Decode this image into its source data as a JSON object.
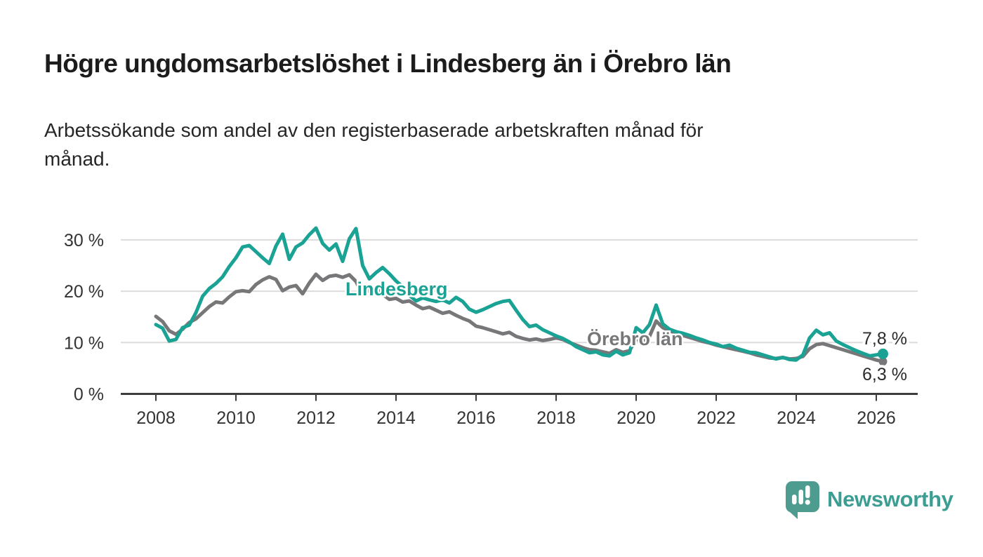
{
  "header": {
    "title": "Högre ungdomsarbetslöshet i Lindesberg än i Örebro län",
    "subtitle_lines": [
      "Arbetssökande som andel av den registerbaserade arbetskraften månad för",
      "månad."
    ]
  },
  "footer": {
    "brand": "Newsworthy",
    "logo_icon": "newsworthy-speech-bubble-bar-chart-icon",
    "brand_color": "#3c9e93",
    "logo_bubble_color": "#4e9c90"
  },
  "chart_data": {
    "type": "line",
    "title": "Högre ungdomsarbetslöshet i Lindesberg än i Örebro län",
    "subtitle": "Arbetssökande som andel av den registerbaserade arbetskraften månad för månad.",
    "unit": "percent",
    "x_unit": "year (monthly data)",
    "x_start": 2008.0,
    "x_step_years": 0.1666667,
    "xlim": [
      2007.5,
      2027.0
    ],
    "ylim": [
      0,
      33
    ],
    "grid": "horizontal",
    "x_ticks": [
      "2008",
      "2010",
      "2012",
      "2014",
      "2016",
      "2018",
      "2020",
      "2022",
      "2024",
      "2026"
    ],
    "x_tick_years": [
      2008,
      2010,
      2012,
      2014,
      2016,
      2018,
      2020,
      2022,
      2024,
      2026
    ],
    "y_ticks": [
      {
        "value": 0,
        "label": "0 %"
      },
      {
        "value": 10,
        "label": "10 %"
      },
      {
        "value": 20,
        "label": "20 %"
      },
      {
        "value": 30,
        "label": "30 %"
      }
    ],
    "colors": {
      "grid": "#dcdcdc",
      "axis": "#3d3d3d",
      "tick_text": "#333333",
      "value_text": "#2b2b2b"
    },
    "series": [
      {
        "name": "Örebro län",
        "color": "#77777a",
        "end_label": "6,3 %",
        "end_value": 6.3,
        "values": [
          15.1,
          14.1,
          12.3,
          11.6,
          12.6,
          13.9,
          14.6,
          15.8,
          17.0,
          17.9,
          17.7,
          18.9,
          19.9,
          20.1,
          19.9,
          21.3,
          22.2,
          22.8,
          22.3,
          20.1,
          20.8,
          21.1,
          19.5,
          21.6,
          23.3,
          22.1,
          22.9,
          23.1,
          22.7,
          23.2,
          21.9,
          19.3,
          20.3,
          20.6,
          19.4,
          18.4,
          18.6,
          17.9,
          18.1,
          17.3,
          16.6,
          16.9,
          16.3,
          15.7,
          16.0,
          15.3,
          14.7,
          14.2,
          13.2,
          12.9,
          12.5,
          12.1,
          11.7,
          12.0,
          11.2,
          10.8,
          10.5,
          10.7,
          10.4,
          10.6,
          10.9,
          10.6,
          10.0,
          9.5,
          9.0,
          8.6,
          8.5,
          8.2,
          7.9,
          8.6,
          8.1,
          8.4,
          10.6,
          10.3,
          11.2,
          14.2,
          12.9,
          12.3,
          11.8,
          11.4,
          11.0,
          10.6,
          10.2,
          9.9,
          9.5,
          9.2,
          8.9,
          8.6,
          8.3,
          8.0,
          7.6,
          7.3,
          7.0,
          6.9,
          7.1,
          6.8,
          6.9,
          7.3,
          8.8,
          9.6,
          9.8,
          9.4,
          9.0,
          8.6,
          8.2,
          7.8,
          7.4,
          7.0,
          6.6,
          6.3
        ]
      },
      {
        "name": "Lindesberg",
        "color": "#1aa294",
        "end_label": "7,8 %",
        "end_value": 7.8,
        "values": [
          13.5,
          12.8,
          10.3,
          10.6,
          12.9,
          13.4,
          15.8,
          19.0,
          20.5,
          21.5,
          22.8,
          24.8,
          26.5,
          28.6,
          28.9,
          27.7,
          26.5,
          25.4,
          28.8,
          31.1,
          26.2,
          28.6,
          29.4,
          31.0,
          32.3,
          29.3,
          28.0,
          29.2,
          25.8,
          30.2,
          32.2,
          25.0,
          22.4,
          23.6,
          24.6,
          23.4,
          22.0,
          20.9,
          19.2,
          18.1,
          18.7,
          18.3,
          18.0,
          18.3,
          17.7,
          18.8,
          18.0,
          16.5,
          15.9,
          16.4,
          17.0,
          17.6,
          18.0,
          18.2,
          16.3,
          14.5,
          13.1,
          13.4,
          12.5,
          11.9,
          11.3,
          10.8,
          10.1,
          9.2,
          8.6,
          8.0,
          8.2,
          7.6,
          7.4,
          8.3,
          7.6,
          8.0,
          12.9,
          11.9,
          13.5,
          17.3,
          13.6,
          12.6,
          12.1,
          11.8,
          11.4,
          10.9,
          10.5,
          10.0,
          9.7,
          9.2,
          9.5,
          8.9,
          8.5,
          8.1,
          8.0,
          7.6,
          7.2,
          6.8,
          7.1,
          6.7,
          6.6,
          7.6,
          10.9,
          12.4,
          11.5,
          11.9,
          10.3,
          9.6,
          9.0,
          8.4,
          7.9,
          7.4,
          7.6,
          7.8
        ]
      }
    ],
    "legend_position": "inline-labels-on-lines"
  }
}
